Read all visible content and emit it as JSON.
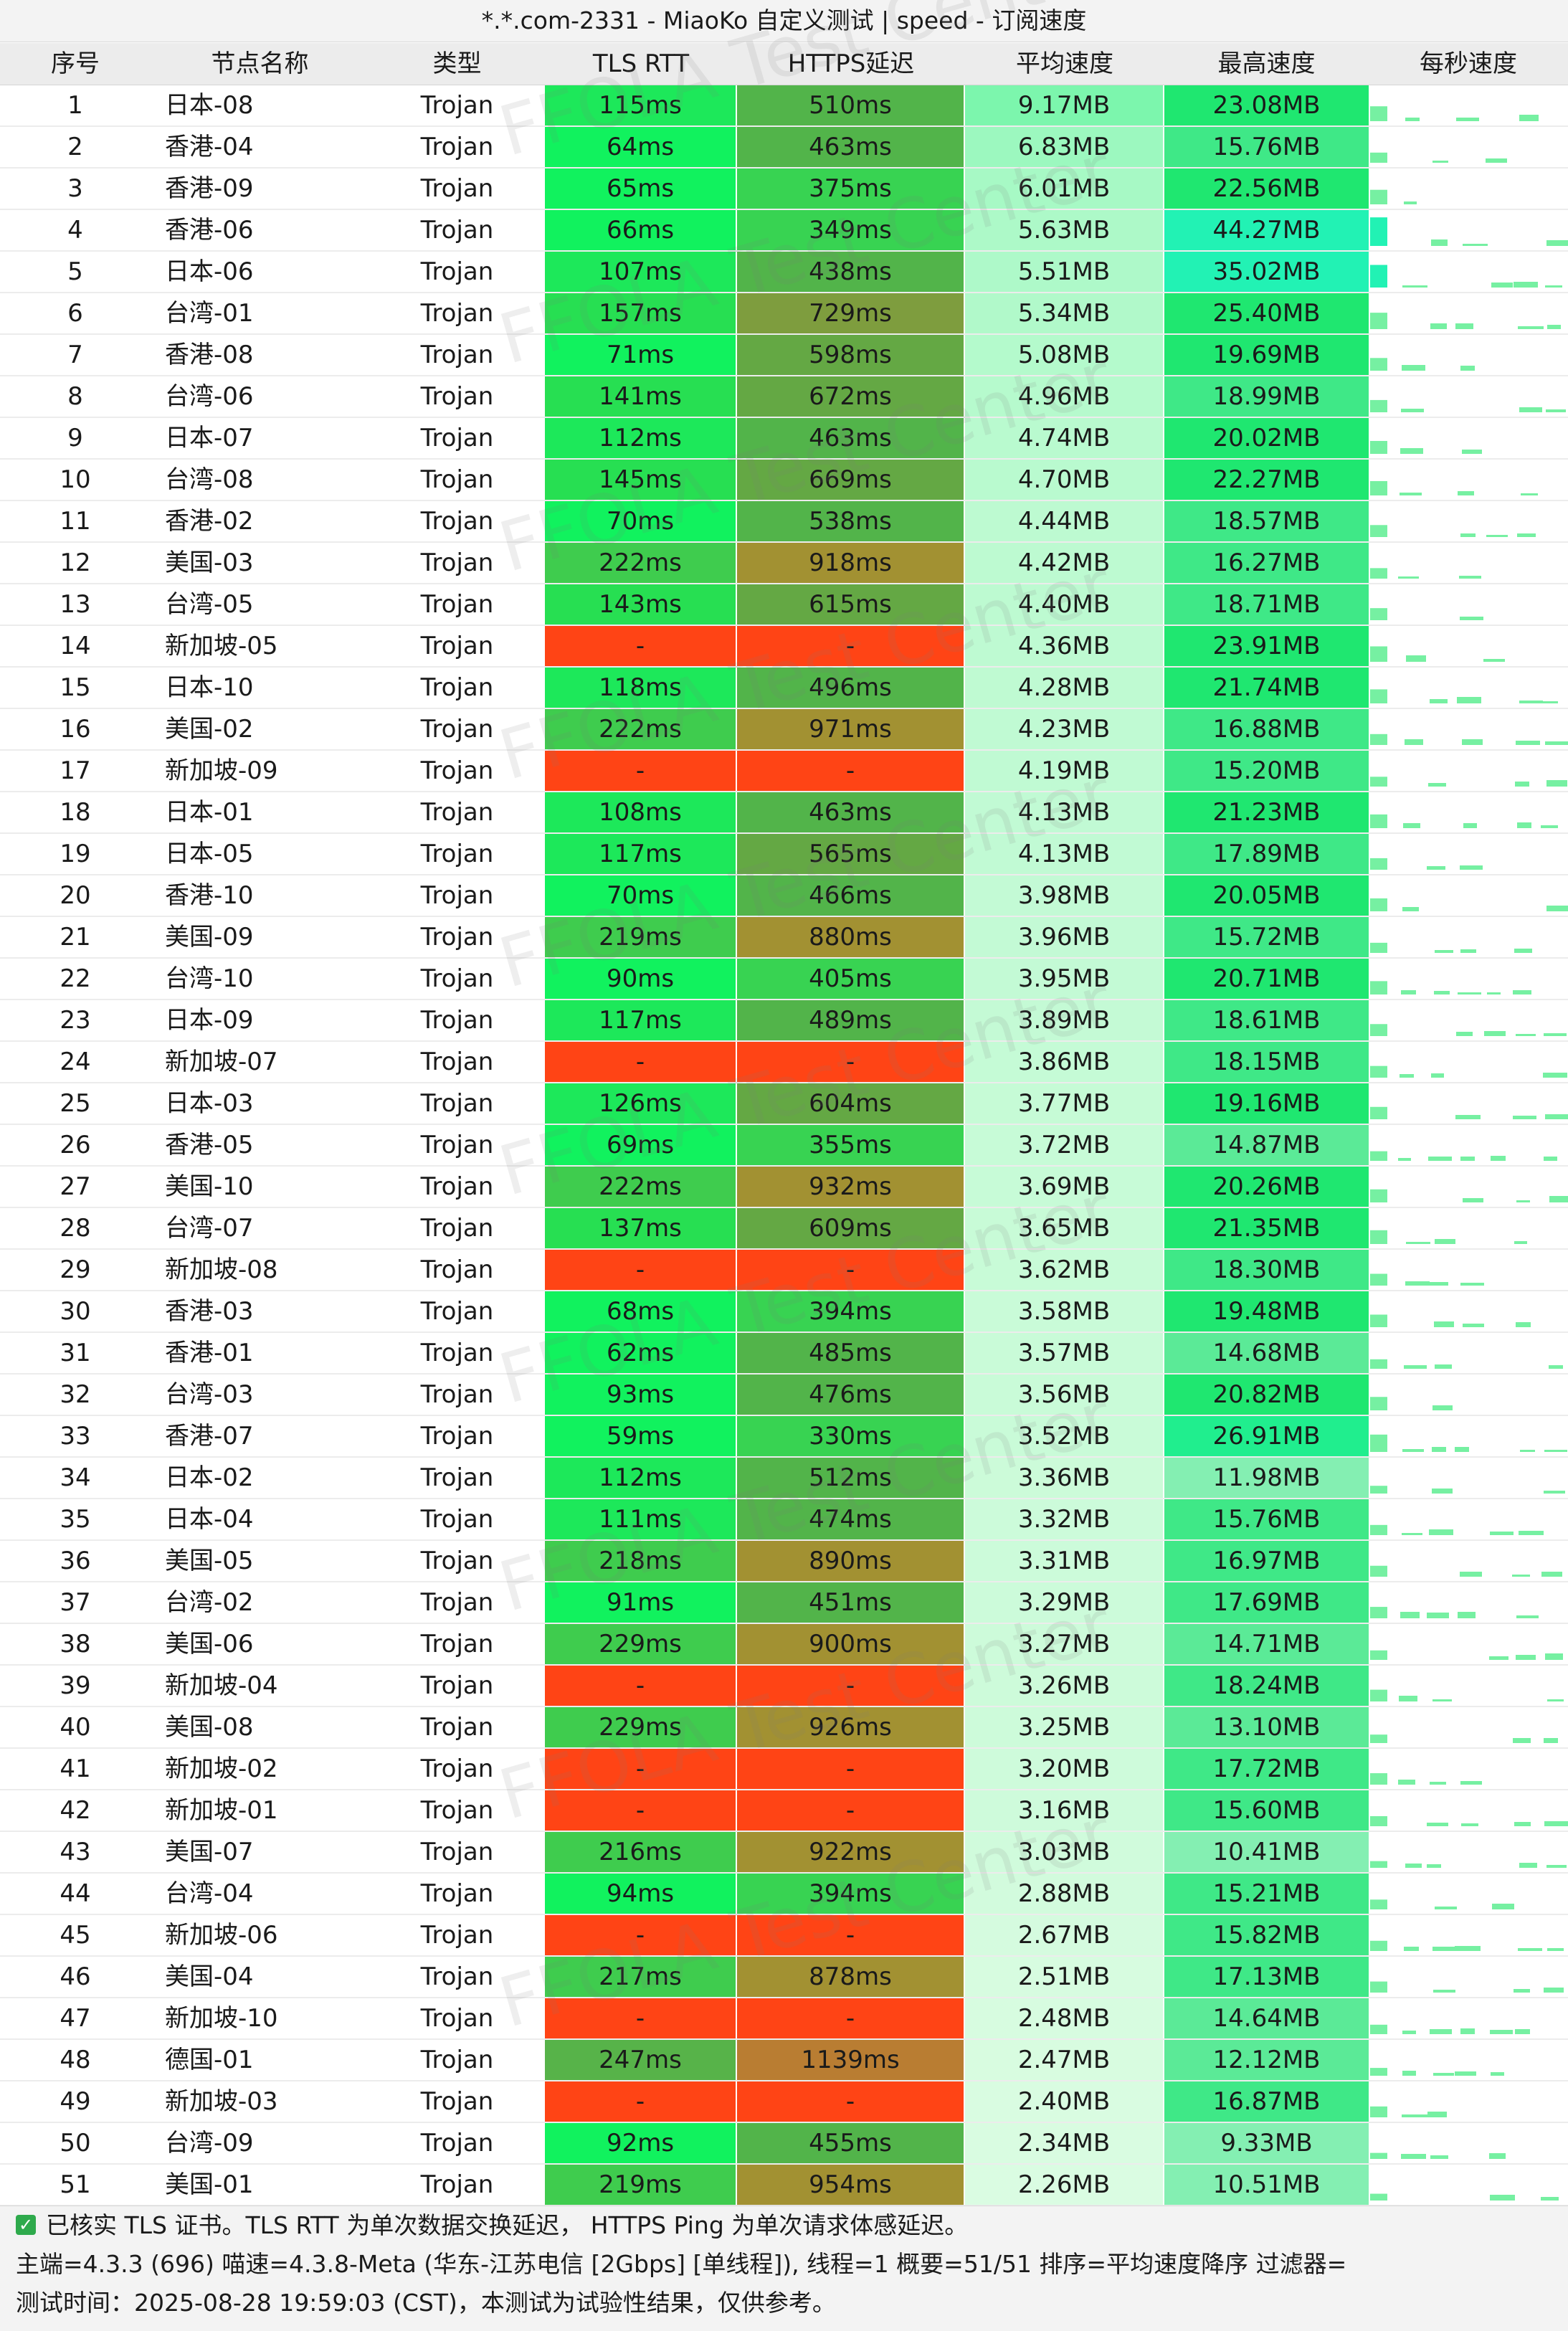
{
  "title": "*.*.com-2331 - MiaoKo 自定义测试 | speed - 订阅速度",
  "watermark": "FFOLA Test Center",
  "columns": {
    "index": "序号",
    "name": "节点名称",
    "type": "类型",
    "tls_rtt": "TLS RTT",
    "https": "HTTPS延迟",
    "avg_speed": "平均速度",
    "max_speed": "最高速度",
    "per_second": "每秒速度"
  },
  "colors": {
    "fail": "#ff4415",
    "latency_fast": "#11f25e",
    "latency_mid": "#27df52",
    "latency_slow": "#52b44a",
    "latency_warn": "#a29132",
    "latency_bad": "#b97d32",
    "spark": "#76f0a2"
  },
  "rows": [
    {
      "index": "1",
      "name": "日本-08",
      "type": "Trojan",
      "tls": "115ms",
      "https": "510ms",
      "avg": "9.17MB",
      "max": "23.08MB"
    },
    {
      "index": "2",
      "name": "香港-04",
      "type": "Trojan",
      "tls": "64ms",
      "https": "463ms",
      "avg": "6.83MB",
      "max": "15.76MB"
    },
    {
      "index": "3",
      "name": "香港-09",
      "type": "Trojan",
      "tls": "65ms",
      "https": "375ms",
      "avg": "6.01MB",
      "max": "22.56MB"
    },
    {
      "index": "4",
      "name": "香港-06",
      "type": "Trojan",
      "tls": "66ms",
      "https": "349ms",
      "avg": "5.63MB",
      "max": "44.27MB"
    },
    {
      "index": "5",
      "name": "日本-06",
      "type": "Trojan",
      "tls": "107ms",
      "https": "438ms",
      "avg": "5.51MB",
      "max": "35.02MB"
    },
    {
      "index": "6",
      "name": "台湾-01",
      "type": "Trojan",
      "tls": "157ms",
      "https": "729ms",
      "avg": "5.34MB",
      "max": "25.40MB"
    },
    {
      "index": "7",
      "name": "香港-08",
      "type": "Trojan",
      "tls": "71ms",
      "https": "598ms",
      "avg": "5.08MB",
      "max": "19.69MB"
    },
    {
      "index": "8",
      "name": "台湾-06",
      "type": "Trojan",
      "tls": "141ms",
      "https": "672ms",
      "avg": "4.96MB",
      "max": "18.99MB"
    },
    {
      "index": "9",
      "name": "日本-07",
      "type": "Trojan",
      "tls": "112ms",
      "https": "463ms",
      "avg": "4.74MB",
      "max": "20.02MB"
    },
    {
      "index": "10",
      "name": "台湾-08",
      "type": "Trojan",
      "tls": "145ms",
      "https": "669ms",
      "avg": "4.70MB",
      "max": "22.27MB"
    },
    {
      "index": "11",
      "name": "香港-02",
      "type": "Trojan",
      "tls": "70ms",
      "https": "538ms",
      "avg": "4.44MB",
      "max": "18.57MB"
    },
    {
      "index": "12",
      "name": "美国-03",
      "type": "Trojan",
      "tls": "222ms",
      "https": "918ms",
      "avg": "4.42MB",
      "max": "16.27MB"
    },
    {
      "index": "13",
      "name": "台湾-05",
      "type": "Trojan",
      "tls": "143ms",
      "https": "615ms",
      "avg": "4.40MB",
      "max": "18.71MB"
    },
    {
      "index": "14",
      "name": "新加坡-05",
      "type": "Trojan",
      "tls": "-",
      "https": "-",
      "avg": "4.36MB",
      "max": "23.91MB"
    },
    {
      "index": "15",
      "name": "日本-10",
      "type": "Trojan",
      "tls": "118ms",
      "https": "496ms",
      "avg": "4.28MB",
      "max": "21.74MB"
    },
    {
      "index": "16",
      "name": "美国-02",
      "type": "Trojan",
      "tls": "222ms",
      "https": "971ms",
      "avg": "4.23MB",
      "max": "16.88MB"
    },
    {
      "index": "17",
      "name": "新加坡-09",
      "type": "Trojan",
      "tls": "-",
      "https": "-",
      "avg": "4.19MB",
      "max": "15.20MB"
    },
    {
      "index": "18",
      "name": "日本-01",
      "type": "Trojan",
      "tls": "108ms",
      "https": "463ms",
      "avg": "4.13MB",
      "max": "21.23MB"
    },
    {
      "index": "19",
      "name": "日本-05",
      "type": "Trojan",
      "tls": "117ms",
      "https": "565ms",
      "avg": "4.13MB",
      "max": "17.89MB"
    },
    {
      "index": "20",
      "name": "香港-10",
      "type": "Trojan",
      "tls": "70ms",
      "https": "466ms",
      "avg": "3.98MB",
      "max": "20.05MB"
    },
    {
      "index": "21",
      "name": "美国-09",
      "type": "Trojan",
      "tls": "219ms",
      "https": "880ms",
      "avg": "3.96MB",
      "max": "15.72MB"
    },
    {
      "index": "22",
      "name": "台湾-10",
      "type": "Trojan",
      "tls": "90ms",
      "https": "405ms",
      "avg": "3.95MB",
      "max": "20.71MB"
    },
    {
      "index": "23",
      "name": "日本-09",
      "type": "Trojan",
      "tls": "117ms",
      "https": "489ms",
      "avg": "3.89MB",
      "max": "18.61MB"
    },
    {
      "index": "24",
      "name": "新加坡-07",
      "type": "Trojan",
      "tls": "-",
      "https": "-",
      "avg": "3.86MB",
      "max": "18.15MB"
    },
    {
      "index": "25",
      "name": "日本-03",
      "type": "Trojan",
      "tls": "126ms",
      "https": "604ms",
      "avg": "3.77MB",
      "max": "19.16MB"
    },
    {
      "index": "26",
      "name": "香港-05",
      "type": "Trojan",
      "tls": "69ms",
      "https": "355ms",
      "avg": "3.72MB",
      "max": "14.87MB"
    },
    {
      "index": "27",
      "name": "美国-10",
      "type": "Trojan",
      "tls": "222ms",
      "https": "932ms",
      "avg": "3.69MB",
      "max": "20.26MB"
    },
    {
      "index": "28",
      "name": "台湾-07",
      "type": "Trojan",
      "tls": "137ms",
      "https": "609ms",
      "avg": "3.65MB",
      "max": "21.35MB"
    },
    {
      "index": "29",
      "name": "新加坡-08",
      "type": "Trojan",
      "tls": "-",
      "https": "-",
      "avg": "3.62MB",
      "max": "18.30MB"
    },
    {
      "index": "30",
      "name": "香港-03",
      "type": "Trojan",
      "tls": "68ms",
      "https": "394ms",
      "avg": "3.58MB",
      "max": "19.48MB"
    },
    {
      "index": "31",
      "name": "香港-01",
      "type": "Trojan",
      "tls": "62ms",
      "https": "485ms",
      "avg": "3.57MB",
      "max": "14.68MB"
    },
    {
      "index": "32",
      "name": "台湾-03",
      "type": "Trojan",
      "tls": "93ms",
      "https": "476ms",
      "avg": "3.56MB",
      "max": "20.82MB"
    },
    {
      "index": "33",
      "name": "香港-07",
      "type": "Trojan",
      "tls": "59ms",
      "https": "330ms",
      "avg": "3.52MB",
      "max": "26.91MB"
    },
    {
      "index": "34",
      "name": "日本-02",
      "type": "Trojan",
      "tls": "112ms",
      "https": "512ms",
      "avg": "3.36MB",
      "max": "11.98MB"
    },
    {
      "index": "35",
      "name": "日本-04",
      "type": "Trojan",
      "tls": "111ms",
      "https": "474ms",
      "avg": "3.32MB",
      "max": "15.76MB"
    },
    {
      "index": "36",
      "name": "美国-05",
      "type": "Trojan",
      "tls": "218ms",
      "https": "890ms",
      "avg": "3.31MB",
      "max": "16.97MB"
    },
    {
      "index": "37",
      "name": "台湾-02",
      "type": "Trojan",
      "tls": "91ms",
      "https": "451ms",
      "avg": "3.29MB",
      "max": "17.69MB"
    },
    {
      "index": "38",
      "name": "美国-06",
      "type": "Trojan",
      "tls": "229ms",
      "https": "900ms",
      "avg": "3.27MB",
      "max": "14.71MB"
    },
    {
      "index": "39",
      "name": "新加坡-04",
      "type": "Trojan",
      "tls": "-",
      "https": "-",
      "avg": "3.26MB",
      "max": "18.24MB"
    },
    {
      "index": "40",
      "name": "美国-08",
      "type": "Trojan",
      "tls": "229ms",
      "https": "926ms",
      "avg": "3.25MB",
      "max": "13.10MB"
    },
    {
      "index": "41",
      "name": "新加坡-02",
      "type": "Trojan",
      "tls": "-",
      "https": "-",
      "avg": "3.20MB",
      "max": "17.72MB"
    },
    {
      "index": "42",
      "name": "新加坡-01",
      "type": "Trojan",
      "tls": "-",
      "https": "-",
      "avg": "3.16MB",
      "max": "15.60MB"
    },
    {
      "index": "43",
      "name": "美国-07",
      "type": "Trojan",
      "tls": "216ms",
      "https": "922ms",
      "avg": "3.03MB",
      "max": "10.41MB"
    },
    {
      "index": "44",
      "name": "台湾-04",
      "type": "Trojan",
      "tls": "94ms",
      "https": "394ms",
      "avg": "2.88MB",
      "max": "15.21MB"
    },
    {
      "index": "45",
      "name": "新加坡-06",
      "type": "Trojan",
      "tls": "-",
      "https": "-",
      "avg": "2.67MB",
      "max": "15.82MB"
    },
    {
      "index": "46",
      "name": "美国-04",
      "type": "Trojan",
      "tls": "217ms",
      "https": "878ms",
      "avg": "2.51MB",
      "max": "17.13MB"
    },
    {
      "index": "47",
      "name": "新加坡-10",
      "type": "Trojan",
      "tls": "-",
      "https": "-",
      "avg": "2.48MB",
      "max": "14.64MB"
    },
    {
      "index": "48",
      "name": "德国-01",
      "type": "Trojan",
      "tls": "247ms",
      "https": "1139ms",
      "avg": "2.47MB",
      "max": "12.12MB"
    },
    {
      "index": "49",
      "name": "新加坡-03",
      "type": "Trojan",
      "tls": "-",
      "https": "-",
      "avg": "2.40MB",
      "max": "16.87MB"
    },
    {
      "index": "50",
      "name": "台湾-09",
      "type": "Trojan",
      "tls": "92ms",
      "https": "455ms",
      "avg": "2.34MB",
      "max": "9.33MB"
    },
    {
      "index": "51",
      "name": "美国-01",
      "type": "Trojan",
      "tls": "219ms",
      "https": "954ms",
      "avg": "2.26MB",
      "max": "10.51MB"
    }
  ],
  "footer": {
    "line1": "已核实 TLS 证书。TLS RTT 为单次数据交换延迟， HTTPS Ping 为单次请求体感延迟。",
    "line2": "主端=4.3.3 (696) 喵速=4.3.8-Meta (华东-江苏电信 [2Gbps] [单线程]), 线程=1 概要=51/51 排序=平均速度降序 过滤器=",
    "line3": "测试时间：2025-08-28 19:59:03 (CST)，本测试为试验性结果，仅供参考。"
  }
}
